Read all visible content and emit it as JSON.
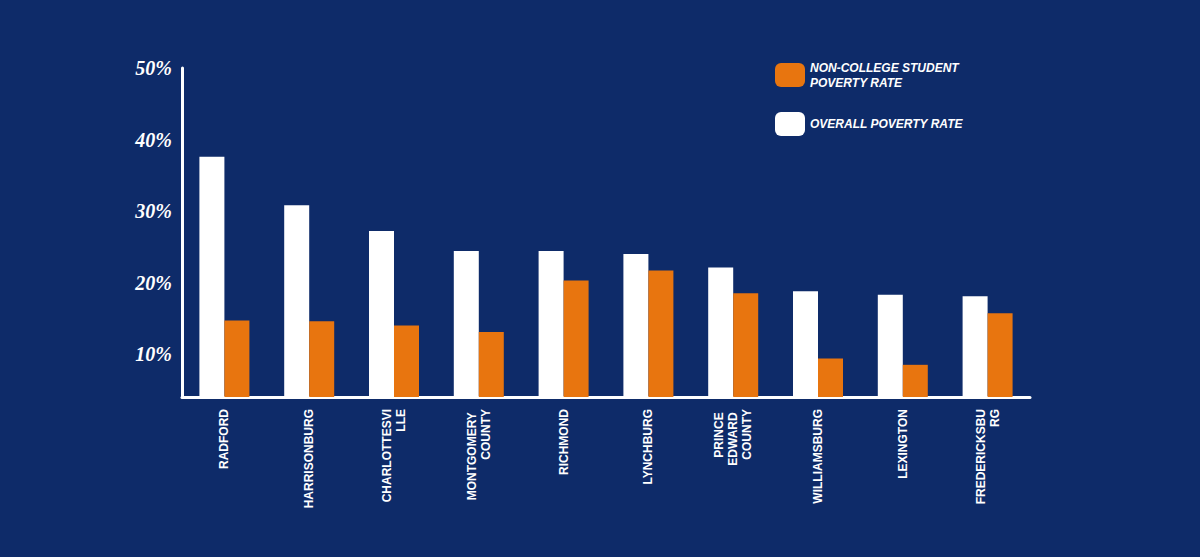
{
  "chart_data": {
    "type": "bar",
    "categories": [
      "RADFORD",
      "HARRISONBURG",
      "CHARLOTTESVILLE",
      "MONTGOMERY COUNTY",
      "RICHMOND",
      "LYNCHBURG",
      "PRINCE EDWARD COUNTY",
      "WILLIAMSBURG",
      "LEXINGTON",
      "FREDERICKSBURG"
    ],
    "series": [
      {
        "name": "OVERALL POVERTY RATE",
        "color": "#ffffff",
        "values": [
          37.6,
          30.8,
          27.2,
          24.4,
          24.4,
          24.0,
          22.1,
          18.8,
          18.3,
          18.1
        ]
      },
      {
        "name": "NON-COLLEGE STUDENT POVERTY RATE",
        "color": "#e8750f",
        "values": [
          14.7,
          14.6,
          14.0,
          13.1,
          20.3,
          21.7,
          18.5,
          9.4,
          8.5,
          15.7
        ]
      }
    ],
    "ylim": [
      4,
      50
    ],
    "yticks": [
      {
        "value": 10,
        "label": "10%"
      },
      {
        "value": 20,
        "label": "20%"
      },
      {
        "value": 30,
        "label": "30%"
      },
      {
        "value": 40,
        "label": "40%"
      },
      {
        "value": 50,
        "label": "50%"
      }
    ],
    "grid": false,
    "legend": "upper right"
  }
}
